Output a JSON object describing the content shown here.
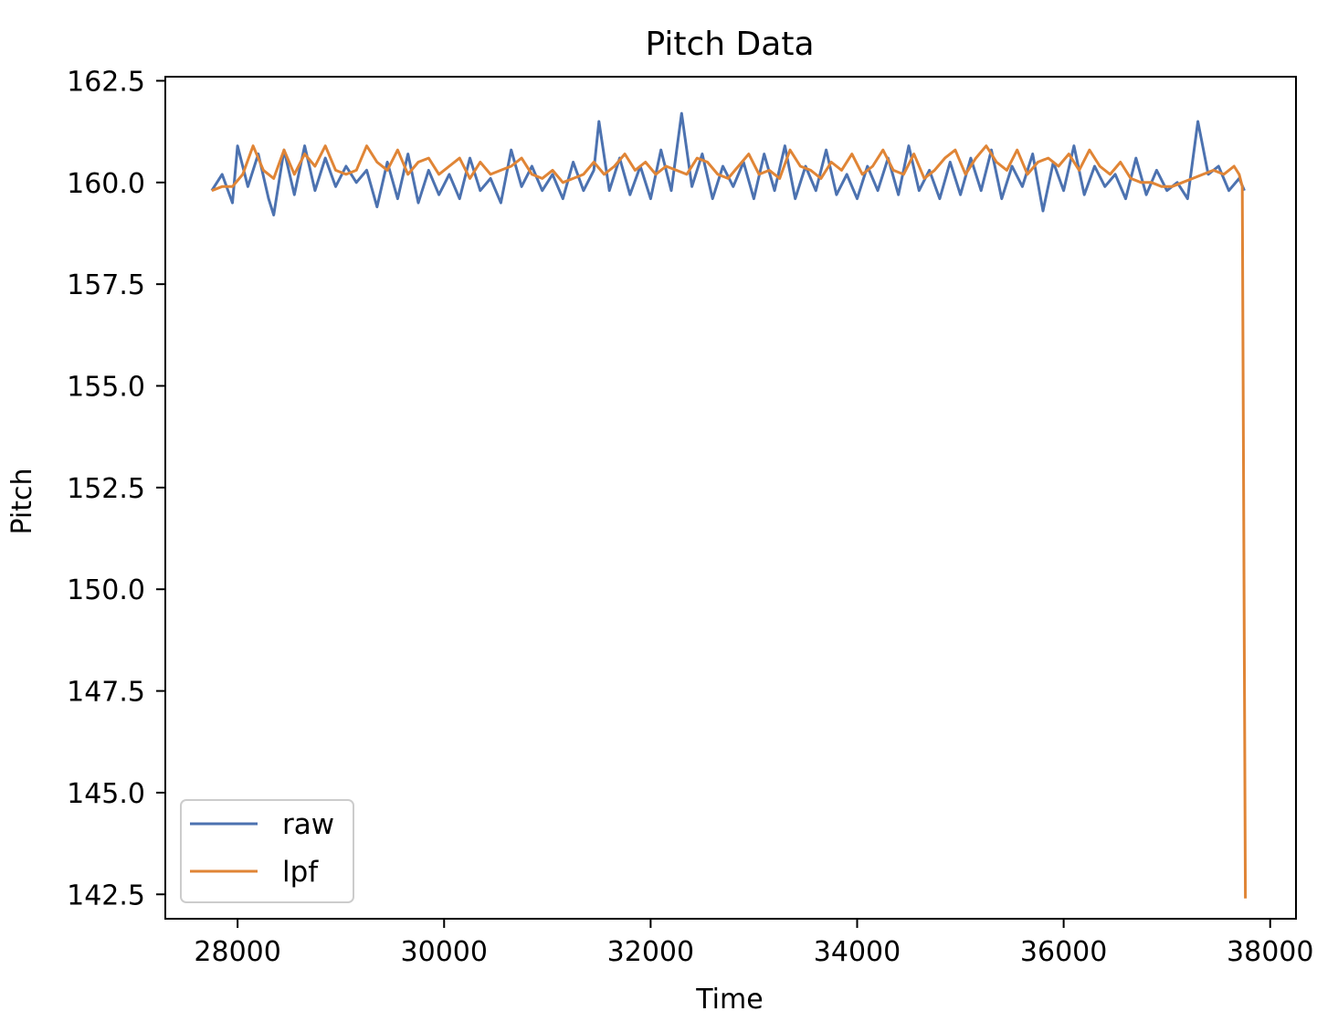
{
  "chart_data": {
    "type": "line",
    "title": "Pitch Data",
    "xlabel": "Time",
    "ylabel": "Pitch",
    "xlim": [
      27300,
      38250
    ],
    "ylim": [
      141.9,
      162.6
    ],
    "xticks": [
      "28000",
      "30000",
      "32000",
      "34000",
      "36000",
      "38000"
    ],
    "yticks": [
      "162.5",
      "160.0",
      "157.5",
      "155.0",
      "152.5",
      "150.0",
      "147.5",
      "145.0",
      "142.5"
    ],
    "grid": false,
    "legend_position": "lower-left",
    "series": [
      {
        "name": "raw",
        "color": "#4c72b0",
        "x": [
          27750,
          27850,
          27950,
          28000,
          28100,
          28200,
          28300,
          28350,
          28450,
          28550,
          28650,
          28750,
          28850,
          28950,
          29050,
          29150,
          29250,
          29350,
          29450,
          29550,
          29650,
          29750,
          29850,
          29950,
          30050,
          30150,
          30250,
          30350,
          30450,
          30550,
          30650,
          30750,
          30850,
          30950,
          31050,
          31150,
          31250,
          31350,
          31450,
          31500,
          31600,
          31700,
          31800,
          31900,
          32000,
          32100,
          32200,
          32300,
          32400,
          32500,
          32600,
          32700,
          32800,
          32900,
          33000,
          33100,
          33200,
          33300,
          33400,
          33500,
          33600,
          33700,
          33800,
          33900,
          34000,
          34100,
          34200,
          34300,
          34400,
          34500,
          34600,
          34700,
          34800,
          34900,
          35000,
          35100,
          35200,
          35300,
          35400,
          35500,
          35600,
          35700,
          35800,
          35900,
          36000,
          36100,
          36200,
          36300,
          36400,
          36500,
          36600,
          36700,
          36800,
          36900,
          37000,
          37100,
          37200,
          37300,
          37400,
          37500,
          37600,
          37700,
          37750
        ],
        "y": [
          159.8,
          160.2,
          159.5,
          160.9,
          159.9,
          160.7,
          159.6,
          159.2,
          160.8,
          159.7,
          160.9,
          159.8,
          160.6,
          159.9,
          160.4,
          160.0,
          160.3,
          159.4,
          160.5,
          159.6,
          160.7,
          159.5,
          160.3,
          159.7,
          160.2,
          159.6,
          160.6,
          159.8,
          160.1,
          159.5,
          160.8,
          159.9,
          160.4,
          159.8,
          160.2,
          159.6,
          160.5,
          159.8,
          160.3,
          161.5,
          159.8,
          160.6,
          159.7,
          160.4,
          159.6,
          160.8,
          159.8,
          161.7,
          159.9,
          160.7,
          159.6,
          160.4,
          159.9,
          160.5,
          159.6,
          160.7,
          159.8,
          160.9,
          159.6,
          160.4,
          159.8,
          160.8,
          159.7,
          160.2,
          159.6,
          160.4,
          159.8,
          160.6,
          159.7,
          160.9,
          159.8,
          160.3,
          159.6,
          160.5,
          159.7,
          160.6,
          159.8,
          160.8,
          159.6,
          160.4,
          159.9,
          160.7,
          159.3,
          160.5,
          159.8,
          160.9,
          159.7,
          160.4,
          159.9,
          160.2,
          159.6,
          160.6,
          159.7,
          160.3,
          159.8,
          160.0,
          159.6,
          161.5,
          160.2,
          160.4,
          159.8,
          160.1,
          159.8
        ]
      },
      {
        "name": "lpf",
        "color": "#e08536",
        "x": [
          27750,
          27850,
          27950,
          28050,
          28150,
          28250,
          28350,
          28450,
          28550,
          28650,
          28750,
          28850,
          28950,
          29050,
          29150,
          29250,
          29350,
          29450,
          29550,
          29650,
          29750,
          29850,
          29950,
          30050,
          30150,
          30250,
          30350,
          30450,
          30550,
          30650,
          30750,
          30850,
          30950,
          31050,
          31150,
          31250,
          31350,
          31450,
          31550,
          31650,
          31750,
          31850,
          31950,
          32050,
          32150,
          32250,
          32350,
          32450,
          32550,
          32650,
          32750,
          32850,
          32950,
          33050,
          33150,
          33250,
          33350,
          33450,
          33550,
          33650,
          33750,
          33850,
          33950,
          34050,
          34150,
          34250,
          34350,
          34450,
          34550,
          34650,
          34750,
          34850,
          34950,
          35050,
          35150,
          35250,
          35350,
          35450,
          35550,
          35650,
          35750,
          35850,
          35950,
          36050,
          36150,
          36250,
          36350,
          36450,
          36550,
          36650,
          36750,
          36850,
          36950,
          37050,
          37150,
          37250,
          37350,
          37450,
          37550,
          37650,
          37700,
          37730,
          37760
        ],
        "y": [
          159.8,
          159.9,
          159.9,
          160.2,
          160.9,
          160.3,
          160.1,
          160.8,
          160.2,
          160.7,
          160.4,
          160.9,
          160.3,
          160.2,
          160.3,
          160.9,
          160.5,
          160.3,
          160.8,
          160.2,
          160.5,
          160.6,
          160.2,
          160.4,
          160.6,
          160.1,
          160.5,
          160.2,
          160.3,
          160.4,
          160.6,
          160.2,
          160.1,
          160.3,
          160.0,
          160.1,
          160.2,
          160.5,
          160.2,
          160.4,
          160.7,
          160.3,
          160.5,
          160.2,
          160.4,
          160.3,
          160.2,
          160.6,
          160.5,
          160.2,
          160.1,
          160.4,
          160.7,
          160.2,
          160.3,
          160.1,
          160.8,
          160.4,
          160.3,
          160.1,
          160.5,
          160.3,
          160.7,
          160.2,
          160.4,
          160.8,
          160.3,
          160.2,
          160.7,
          160.1,
          160.3,
          160.6,
          160.8,
          160.2,
          160.6,
          160.9,
          160.5,
          160.3,
          160.8,
          160.2,
          160.5,
          160.6,
          160.4,
          160.7,
          160.3,
          160.8,
          160.4,
          160.2,
          160.5,
          160.1,
          160.0,
          160.0,
          159.9,
          159.9,
          160.0,
          160.1,
          160.2,
          160.3,
          160.2,
          160.4,
          160.2,
          159.9,
          142.4
        ]
      }
    ]
  }
}
